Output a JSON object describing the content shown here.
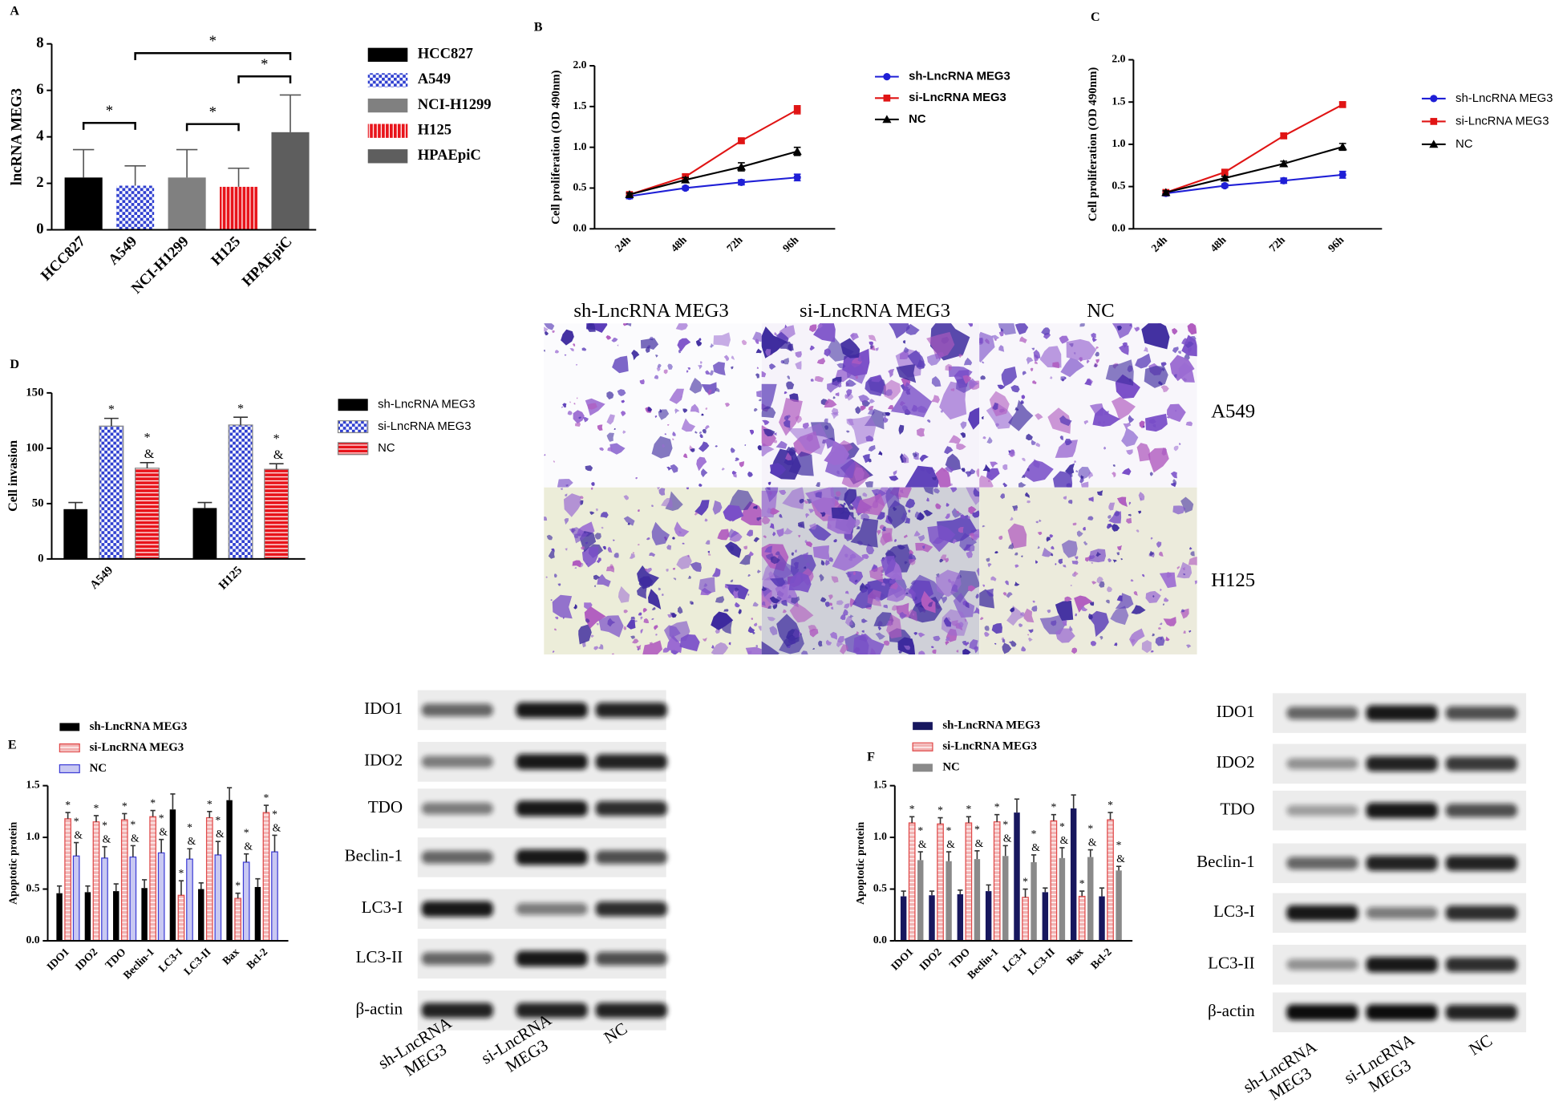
{
  "chart_data": [
    {
      "type": "bar",
      "panel": "A",
      "ylabel": "lncRNA MEG3",
      "categories": [
        "HCC827",
        "A549",
        "NCI-H1299",
        "H125",
        "HPAEpiC"
      ],
      "values": [
        2.25,
        1.9,
        2.25,
        1.85,
        4.2
      ],
      "errors": [
        1.2,
        0.85,
        1.2,
        0.8,
        1.6
      ],
      "colors": [
        "#000000",
        "#2f3fd0",
        "#808080",
        "#e8141b",
        "#5e5e5e"
      ],
      "patterns": [
        "solid",
        "checker",
        "solid",
        "vstripe",
        "solid"
      ],
      "ylim": [
        0,
        8
      ],
      "yticks": [
        0,
        2,
        4,
        6,
        8
      ],
      "legend": "right",
      "comparisons": [
        {
          "from": "A549",
          "to": "HPAEpiC",
          "y": 7.6,
          "label": "*"
        },
        {
          "from": "HCC827",
          "to": "A549",
          "y": 4.6,
          "label": "*"
        },
        {
          "from": "NCI-H1299",
          "to": "H125",
          "y": 4.55,
          "label": "*"
        },
        {
          "from": "H125",
          "to": "HPAEpiC",
          "y": 6.6,
          "label": "*"
        }
      ]
    },
    {
      "type": "line",
      "panel": "B",
      "ylabel": "Cell proliferation (OD 490nm)",
      "categories": [
        "24h",
        "48h",
        "72h",
        "96h"
      ],
      "series": [
        {
          "name": "sh-LncRNA MEG3",
          "color": "#1f1fd6",
          "marker": "circle",
          "values": [
            0.4,
            0.5,
            0.57,
            0.63
          ],
          "errors": [
            0.03,
            0.02,
            0.03,
            0.04
          ]
        },
        {
          "name": "si-LncRNA MEG3",
          "color": "#e01414",
          "marker": "square",
          "values": [
            0.42,
            0.64,
            1.08,
            1.46
          ],
          "errors": [
            0.02,
            0.03,
            0.03,
            0.05
          ]
        },
        {
          "name": "NC",
          "color": "#000000",
          "marker": "triangle",
          "values": [
            0.42,
            0.6,
            0.76,
            0.95
          ],
          "errors": [
            0.02,
            0.03,
            0.05,
            0.05
          ]
        }
      ],
      "ylim": [
        0,
        2
      ],
      "yticks": [
        {
          "value": 0,
          "label": "0.0"
        },
        0.5,
        {
          "value": 1,
          "label": "1.0"
        },
        1.5,
        {
          "value": 2,
          "label": "2.0"
        }
      ],
      "legend": "right"
    },
    {
      "type": "line",
      "panel": "C",
      "ylabel": "Cell proliferation (OD 490nm)",
      "categories": [
        "24h",
        "48h",
        "72h",
        "96h"
      ],
      "series": [
        {
          "name": "sh-LncRNA MEG3",
          "color": "#1f1fd6",
          "marker": "circle",
          "values": [
            0.42,
            0.51,
            0.57,
            0.64
          ],
          "errors": [
            0.03,
            0.02,
            0.03,
            0.04
          ]
        },
        {
          "name": "si-LncRNA MEG3",
          "color": "#e01414",
          "marker": "square",
          "values": [
            0.43,
            0.67,
            1.1,
            1.47
          ],
          "errors": [
            0.02,
            0.02,
            0.03,
            0.03
          ]
        },
        {
          "name": "NC",
          "color": "#000000",
          "marker": "triangle",
          "values": [
            0.43,
            0.6,
            0.77,
            0.97
          ],
          "errors": [
            0.02,
            0.02,
            0.03,
            0.04
          ]
        }
      ],
      "ylim": [
        0,
        2
      ],
      "yticks": [
        {
          "value": 0,
          "label": "0.0"
        },
        0.5,
        {
          "value": 1,
          "label": "1.0"
        },
        1.5,
        {
          "value": 2,
          "label": "2.0"
        }
      ],
      "legend": "right"
    },
    {
      "type": "grouped_bar",
      "panel": "D",
      "ylabel": "Cell invasion",
      "categories": [
        "A549",
        "H125"
      ],
      "series": [
        {
          "name": "sh-LncRNA MEG3",
          "color": "#000000",
          "pattern": "solid",
          "values": [
            45,
            46
          ],
          "errors": [
            6,
            5
          ]
        },
        {
          "name": "si-LncRNA MEG3",
          "color": "#2f3fd0",
          "pattern": "checker",
          "edgecolor": "#888888",
          "values": [
            120,
            121
          ],
          "errors": [
            7,
            7
          ],
          "annotations": [
            [
              "*"
            ],
            [
              "*"
            ]
          ]
        },
        {
          "name": "NC",
          "color": "#e8141b",
          "pattern": "hstripe",
          "edgecolor": "#888888",
          "values": [
            82,
            81
          ],
          "errors": [
            5,
            5
          ],
          "annotations": [
            [
              "*",
              "&"
            ],
            [
              "*",
              "&"
            ]
          ]
        }
      ],
      "ylim": [
        0,
        150
      ],
      "yticks": [
        0,
        50,
        100,
        150
      ],
      "legend": "right"
    },
    {
      "type": "grouped_bar",
      "panel": "E",
      "ylabel": "Apoptotic protein",
      "categories": [
        "IDO1",
        "IDO2",
        "TDO",
        "Beclin-1",
        "LC3-I",
        "LC3-II",
        "Bax",
        "Bcl-2"
      ],
      "series": [
        {
          "name": "sh-LncRNA MEG3",
          "color": "#000000",
          "pattern": "solid",
          "values": [
            0.46,
            0.47,
            0.48,
            0.51,
            1.27,
            0.5,
            1.36,
            0.52
          ],
          "errors": [
            0.07,
            0.06,
            0.07,
            0.08,
            0.15,
            0.06,
            0.12,
            0.08
          ]
        },
        {
          "name": "si-LncRNA MEG3",
          "color": "#f2b3b3",
          "pattern": "hstripe",
          "edgecolor": "#e04848",
          "values": [
            1.18,
            1.15,
            1.17,
            1.2,
            0.44,
            1.19,
            0.41,
            1.24
          ],
          "errors": [
            0.06,
            0.06,
            0.06,
            0.06,
            0.14,
            0.06,
            0.05,
            0.07
          ],
          "annotations": [
            [
              "*"
            ],
            [
              "*"
            ],
            [
              "*"
            ],
            [
              "*"
            ],
            [
              "*"
            ],
            [
              "*"
            ],
            [
              "*"
            ],
            [
              "*"
            ]
          ]
        },
        {
          "name": "NC",
          "color": "#c9c9f2",
          "pattern": "solid",
          "edgecolor": "#3d3dd6",
          "values": [
            0.82,
            0.8,
            0.81,
            0.85,
            0.79,
            0.83,
            0.76,
            0.86
          ],
          "errors": [
            0.13,
            0.11,
            0.11,
            0.13,
            0.1,
            0.13,
            0.08,
            0.16
          ],
          "annotations": [
            [
              "*",
              "&"
            ],
            [
              "*",
              "&"
            ],
            [
              "*",
              "&"
            ],
            [
              "*",
              "&"
            ],
            [
              "*",
              "&"
            ],
            [
              "*",
              "&"
            ],
            [
              "*",
              "&"
            ],
            [
              "*",
              "&"
            ]
          ]
        }
      ],
      "ylim": [
        0,
        1.5
      ],
      "yticks": [
        {
          "value": 0,
          "label": "0.0"
        },
        0.5,
        {
          "value": 1,
          "label": "1.0"
        },
        1.5
      ],
      "legend": "top"
    },
    {
      "type": "grouped_bar",
      "panel": "F",
      "ylabel": "Apoptotic protein",
      "categories": [
        "IDO1",
        "IDO2",
        "TDO",
        "Beclin-1",
        "LC3-I",
        "LC3-II",
        "Bax",
        "Bcl-2"
      ],
      "series": [
        {
          "name": "sh-LncRNA MEG3",
          "color": "#17175e",
          "pattern": "solid",
          "values": [
            0.43,
            0.44,
            0.45,
            0.48,
            1.24,
            0.47,
            1.28,
            0.43
          ],
          "errors": [
            0.05,
            0.04,
            0.04,
            0.06,
            0.13,
            0.04,
            0.13,
            0.08
          ]
        },
        {
          "name": "si-LncRNA MEG3",
          "color": "#f2b3b3",
          "pattern": "hstripe",
          "edgecolor": "#e04848",
          "values": [
            1.14,
            1.13,
            1.14,
            1.15,
            0.42,
            1.16,
            0.43,
            1.17
          ],
          "errors": [
            0.06,
            0.06,
            0.06,
            0.07,
            0.08,
            0.06,
            0.05,
            0.07
          ],
          "annotations": [
            [
              "*"
            ],
            [
              "*"
            ],
            [
              "*"
            ],
            [
              "*"
            ],
            [
              "*"
            ],
            [
              "*"
            ],
            [
              "*"
            ],
            [
              "*"
            ]
          ]
        },
        {
          "name": "NC",
          "color": "#8a8a8a",
          "pattern": "solid",
          "values": [
            0.78,
            0.77,
            0.79,
            0.82,
            0.76,
            0.8,
            0.81,
            0.68
          ],
          "errors": [
            0.08,
            0.09,
            0.08,
            0.1,
            0.07,
            0.1,
            0.07,
            0.04
          ],
          "annotations": [
            [
              "*",
              "&"
            ],
            [
              "*",
              "&"
            ],
            [
              "*",
              "&"
            ],
            [
              "*",
              "&"
            ],
            [
              "*",
              "&"
            ],
            [
              "*",
              "&"
            ],
            [
              "*",
              "&"
            ],
            [
              "*",
              "&"
            ]
          ]
        }
      ],
      "ylim": [
        0,
        1.5
      ],
      "yticks": [
        {
          "value": 0,
          "label": "0.0"
        },
        0.5,
        {
          "value": 1,
          "label": "1.0"
        },
        1.5
      ],
      "legend": "top"
    }
  ],
  "micrographs": {
    "columns": [
      "sh-LncRNA MEG3",
      "si-LncRNA MEG3",
      "NC"
    ],
    "rows": [
      "A549",
      "H125"
    ]
  },
  "blots": [
    {
      "proteins": [
        "IDO1",
        "IDO2",
        "TDO",
        "Beclin-1",
        "LC3-I",
        "LC3-II",
        "β-actin"
      ],
      "lanes": [
        [
          "sh-LncRNA",
          "MEG3"
        ],
        [
          "si-LncRNA",
          "MEG3"
        ],
        [
          "NC"
        ]
      ]
    },
    {
      "proteins": [
        "IDO1",
        "IDO2",
        "TDO",
        "Beclin-1",
        "LC3-I",
        "LC3-II",
        "β-actin"
      ],
      "lanes": [
        [
          "sh-LncRNA",
          "MEG3"
        ],
        [
          "si-LncRNA",
          "MEG3"
        ],
        [
          "NC"
        ]
      ]
    }
  ]
}
